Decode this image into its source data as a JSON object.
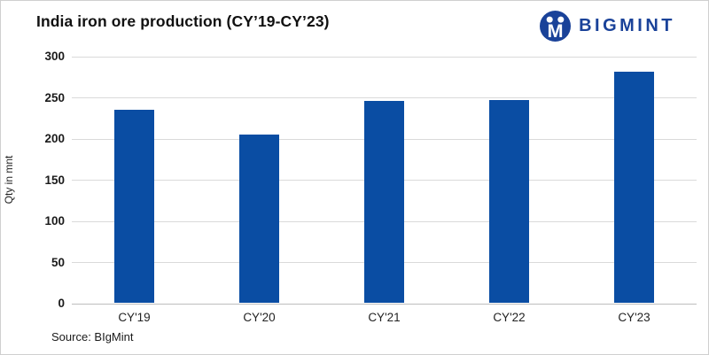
{
  "title": "India iron ore production (CY’19-CY’23)",
  "logo": {
    "text": "BIGMINT",
    "icon": "bigmint-monogram-icon",
    "color": "#1a4299"
  },
  "source": "Source: BIgMint",
  "colors": {
    "bar": "#0a4da3",
    "gridline": "#dadada",
    "baseline": "#bdbdbd",
    "logo_blue": "#1a4299",
    "title_text": "#111111"
  },
  "chart_data": {
    "type": "bar",
    "title": "India iron ore production (CY’19-CY’23)",
    "categories": [
      "CY'19",
      "CY'20",
      "CY'21",
      "CY'22",
      "CY'23"
    ],
    "values": [
      235,
      205,
      246,
      247,
      282
    ],
    "xlabel": "",
    "ylabel": "Qty in mnt",
    "ylim": [
      0,
      300
    ],
    "yticks": [
      0,
      50,
      100,
      150,
      200,
      250,
      300
    ],
    "grid": true,
    "legend": false,
    "bar_color": "#0a4da3"
  }
}
